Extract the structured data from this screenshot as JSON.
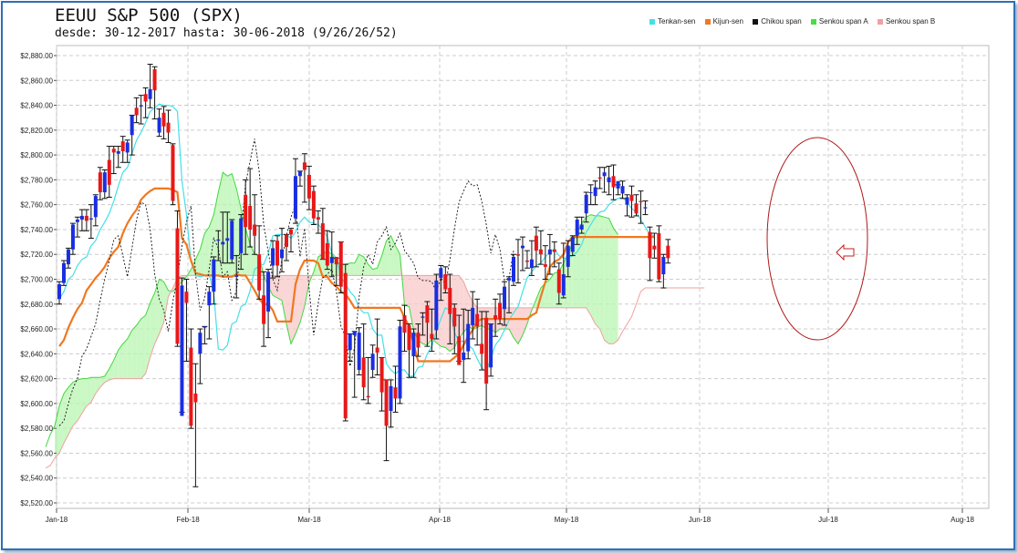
{
  "title": "EEUU S&P 500 (SPX)",
  "subtitle": "desde: 30-12-2017 hasta: 30-06-2018 (9/26/26/52)",
  "legend": [
    {
      "name": "Tenkan-sen",
      "color": "#44e0e8"
    },
    {
      "name": "Kijun-sen",
      "color": "#f07820"
    },
    {
      "name": "Chikou span",
      "color": "#111111"
    },
    {
      "name": "Senkou span A",
      "color": "#44e040"
    },
    {
      "name": "Senkou span B",
      "color": "#f0a0a0"
    }
  ],
  "chart_data": {
    "type": "candlestick",
    "title": "EEUU S&P 500 (SPX)",
    "grid": true,
    "legend_position": "top-right",
    "ylim": [
      2520,
      2880
    ],
    "yticks": [
      "$2,520.00",
      "$2,540.00",
      "$2,560.00",
      "$2,580.00",
      "$2,600.00",
      "$2,620.00",
      "$2,640.00",
      "$2,660.00",
      "$2,680.00",
      "$2,700.00",
      "$2,720.00",
      "$2,740.00",
      "$2,760.00",
      "$2,780.00",
      "$2,800.00",
      "$2,820.00",
      "$2,840.00",
      "$2,860.00",
      "$2,880.00"
    ],
    "xticks": [
      "Jan-18",
      "Feb-18",
      "Mar-18",
      "Apr-18",
      "May-18",
      "Jun-18",
      "Jul-18",
      "Aug-18"
    ],
    "candles": [
      [
        2684,
        2696,
        2680,
        2698
      ],
      [
        2697,
        2713,
        2695,
        2715
      ],
      [
        2712,
        2724,
        2709,
        2725
      ],
      [
        2724,
        2744,
        2720,
        2745
      ],
      [
        2746,
        2748,
        2734,
        2750
      ],
      [
        2748,
        2751,
        2739,
        2756
      ],
      [
        2751,
        2747,
        2739,
        2756
      ],
      [
        2748,
        2749,
        2733,
        2760
      ],
      [
        2750,
        2767,
        2743,
        2768
      ],
      [
        2786,
        2770,
        2764,
        2790
      ],
      [
        2770,
        2786,
        2765,
        2788
      ],
      [
        2796,
        2776,
        2766,
        2807
      ],
      [
        2805,
        2802,
        2785,
        2807
      ],
      [
        2801,
        2803,
        2790,
        2807
      ],
      [
        2811,
        2803,
        2794,
        2815
      ],
      [
        2802,
        2810,
        2794,
        2812
      ],
      [
        2816,
        2832,
        2800,
        2832
      ],
      [
        2838,
        2832,
        2826,
        2846
      ],
      [
        2839,
        2840,
        2825,
        2848
      ],
      [
        2849,
        2843,
        2830,
        2854
      ],
      [
        2845,
        2853,
        2838,
        2873
      ],
      [
        2869,
        2852,
        2829,
        2871
      ],
      [
        2818,
        2830,
        2815,
        2837
      ],
      [
        2834,
        2823,
        2813,
        2839
      ],
      [
        2826,
        2818,
        2810,
        2836
      ],
      [
        2808,
        2763,
        2760,
        2809
      ],
      [
        2741,
        2648,
        2646,
        2755
      ],
      [
        2590,
        2695,
        2593,
        2701
      ],
      [
        2690,
        2681,
        2634,
        2700
      ],
      [
        2645,
        2582,
        2580,
        2660
      ],
      [
        2608,
        2601,
        2533,
        2632
      ],
      [
        2640,
        2657,
        2616,
        2660
      ],
      [
        2661,
        2662,
        2648,
        2662
      ],
      [
        2679,
        2690,
        2652,
        2694
      ],
      [
        2690,
        2716,
        2680,
        2718
      ],
      [
        2731,
        2732,
        2715,
        2739
      ],
      [
        2728,
        2730,
        2713,
        2754
      ],
      [
        2731,
        2733,
        2713,
        2754
      ],
      [
        2716,
        2747,
        2713,
        2748
      ],
      [
        2702,
        2703,
        2685,
        2719
      ],
      [
        2721,
        2749,
        2708,
        2752
      ],
      [
        2768,
        2742,
        2720,
        2780
      ],
      [
        2759,
        2740,
        2726,
        2789
      ],
      [
        2744,
        2735,
        2720,
        2768
      ],
      [
        2720,
        2691,
        2684,
        2743
      ],
      [
        2687,
        2664,
        2646,
        2706
      ],
      [
        2674,
        2706,
        2653,
        2708
      ],
      [
        2711,
        2725,
        2701,
        2731
      ],
      [
        2731,
        2711,
        2702,
        2735
      ],
      [
        2717,
        2724,
        2706,
        2741
      ],
      [
        2736,
        2726,
        2715,
        2736
      ],
      [
        2740,
        2736,
        2722,
        2741
      ],
      [
        2749,
        2783,
        2745,
        2797
      ],
      [
        2783,
        2787,
        2775,
        2787
      ],
      [
        2794,
        2788,
        2762,
        2801
      ],
      [
        2784,
        2765,
        2756,
        2791
      ],
      [
        2771,
        2749,
        2744,
        2775
      ],
      [
        2750,
        2748,
        2737,
        2755
      ],
      [
        2745,
        2716,
        2716,
        2757
      ],
      [
        2729,
        2711,
        2708,
        2739
      ],
      [
        2713,
        2718,
        2702,
        2738
      ],
      [
        2718,
        2712,
        2695,
        2717
      ],
      [
        2730,
        2694,
        2689,
        2730
      ],
      [
        2705,
        2588,
        2586,
        2712
      ],
      [
        2643,
        2656,
        2634,
        2656
      ],
      [
        2655,
        2658,
        2605,
        2658
      ],
      [
        2627,
        2657,
        2623,
        2661
      ],
      [
        2637,
        2613,
        2603,
        2664
      ],
      [
        2606,
        2605,
        2600,
        2637
      ],
      [
        2627,
        2640,
        2621,
        2647
      ],
      [
        2645,
        2641,
        2623,
        2668
      ],
      [
        2637,
        2609,
        2594,
        2637
      ],
      [
        2619,
        2582,
        2554,
        2619
      ],
      [
        2594,
        2614,
        2581,
        2619
      ],
      [
        2613,
        2604,
        2593,
        2630
      ],
      [
        2604,
        2662,
        2600,
        2667
      ],
      [
        2671,
        2657,
        2642,
        2679
      ],
      [
        2663,
        2643,
        2621,
        2664
      ],
      [
        2638,
        2657,
        2621,
        2660
      ],
      [
        2657,
        2645,
        2638,
        2664
      ],
      [
        2669,
        2670,
        2655,
        2673
      ],
      [
        2679,
        2665,
        2646,
        2682
      ],
      [
        2656,
        2652,
        2642,
        2676
      ],
      [
        2659,
        2699,
        2652,
        2704
      ],
      [
        2701,
        2709,
        2683,
        2711
      ],
      [
        2704,
        2692,
        2689,
        2710
      ],
      [
        2693,
        2672,
        2648,
        2704
      ],
      [
        2677,
        2662,
        2640,
        2680
      ],
      [
        2654,
        2631,
        2634,
        2671
      ],
      [
        2635,
        2641,
        2617,
        2676
      ],
      [
        2642,
        2664,
        2636,
        2675
      ],
      [
        2663,
        2677,
        2652,
        2690
      ],
      [
        2672,
        2662,
        2647,
        2684
      ],
      [
        2648,
        2640,
        2627,
        2674
      ],
      [
        2669,
        2616,
        2595,
        2674
      ],
      [
        2629,
        2664,
        2622,
        2664
      ],
      [
        2671,
        2668,
        2654,
        2684
      ],
      [
        2681,
        2668,
        2664,
        2688
      ],
      [
        2676,
        2694,
        2663,
        2698
      ],
      [
        2699,
        2701,
        2673,
        2702
      ],
      [
        2698,
        2718,
        2695,
        2720
      ],
      [
        2720,
        2719,
        2697,
        2732
      ],
      [
        2725,
        2727,
        2707,
        2734
      ],
      [
        2715,
        2714,
        2709,
        2723
      ],
      [
        2709,
        2716,
        2703,
        2731
      ],
      [
        2735,
        2723,
        2710,
        2742
      ],
      [
        2724,
        2720,
        2712,
        2739
      ],
      [
        2712,
        2710,
        2700,
        2727
      ],
      [
        2720,
        2724,
        2704,
        2736
      ],
      [
        2724,
        2722,
        2710,
        2730
      ],
      [
        2708,
        2689,
        2680,
        2713
      ],
      [
        2687,
        2704,
        2685,
        2729
      ],
      [
        2710,
        2727,
        2702,
        2731
      ],
      [
        2722,
        2734,
        2719,
        2735
      ],
      [
        2735,
        2748,
        2728,
        2750
      ],
      [
        2740,
        2744,
        2737,
        2750
      ],
      [
        2753,
        2768,
        2746,
        2770
      ],
      [
        2770,
        2770,
        2760,
        2776
      ],
      [
        2767,
        2774,
        2760,
        2779
      ],
      [
        2782,
        2781,
        2773,
        2790
      ],
      [
        2783,
        2786,
        2770,
        2790
      ],
      [
        2778,
        2782,
        2768,
        2791
      ],
      [
        2783,
        2774,
        2764,
        2792
      ],
      [
        2773,
        2779,
        2768,
        2776
      ],
      [
        2769,
        2775,
        2765,
        2779
      ],
      [
        2760,
        2766,
        2751,
        2768
      ],
      [
        2768,
        2763,
        2750,
        2775
      ],
      [
        2761,
        2753,
        2751,
        2768
      ],
      [
        2763,
        2762,
        2745,
        2771
      ],
      [
        2757,
        2758,
        2752,
        2763
      ],
      [
        2738,
        2717,
        2699,
        2742
      ],
      [
        2727,
        2724,
        2717,
        2737
      ],
      [
        2737,
        2700,
        2698,
        2743
      ],
      [
        2704,
        2718,
        2693,
        2720
      ],
      [
        2727,
        2717,
        2713,
        2732
      ]
    ],
    "tenkan_sen": [
      2684,
      2690,
      2700,
      2703,
      2711,
      2716,
      2718,
      2727,
      2731,
      2740,
      2746,
      2753,
      2763,
      2775,
      2786,
      2790,
      2801,
      2812,
      2818,
      2826,
      2835,
      2838,
      2841,
      2840,
      2840,
      2839,
      2835,
      2779,
      2752,
      2714,
      2703,
      2702,
      2703,
      2704,
      2689,
      2644,
      2643,
      2647,
      2664,
      2666,
      2678,
      2680,
      2691,
      2708,
      2711,
      2712,
      2721,
      2735,
      2736,
      2736,
      2736,
      2733,
      2738,
      2746,
      2750,
      2746,
      2745,
      2744,
      2740,
      2734,
      2721,
      2717,
      2702,
      2696,
      2690,
      2686,
      2677,
      2673,
      2673,
      2660,
      2655,
      2655,
      2632,
      2627,
      2624,
      2627,
      2627,
      2622,
      2622,
      2629,
      2630,
      2640,
      2646,
      2658,
      2668,
      2677,
      2675,
      2657,
      2650,
      2650,
      2647,
      2644,
      2636,
      2629,
      2625,
      2637,
      2647,
      2652,
      2659,
      2667,
      2673,
      2678,
      2690,
      2701,
      2706,
      2711,
      2713,
      2718,
      2722,
      2724,
      2719,
      2717,
      2717,
      2719,
      2722,
      2728,
      2738,
      2744,
      2750,
      2754,
      2755,
      2760,
      2763,
      2765,
      2766,
      2762,
      2757,
      2754,
      2748,
      2742,
      2736,
      2735
    ],
    "kijun_sen": [
      2646,
      2651,
      2661,
      2669,
      2676,
      2681,
      2691,
      2696,
      2701,
      2705,
      2710,
      2717,
      2722,
      2726,
      2737,
      2745,
      2751,
      2756,
      2764,
      2768,
      2771,
      2773,
      2773,
      2773,
      2773,
      2772,
      2770,
      2733,
      2728,
      2715,
      2705,
      2704,
      2703,
      2703,
      2703,
      2703,
      2702,
      2702,
      2702,
      2704,
      2703,
      2703,
      2697,
      2691,
      2684,
      2680,
      2680,
      2675,
      2666,
      2666,
      2666,
      2666,
      2696,
      2708,
      2715,
      2715,
      2715,
      2713,
      2702,
      2702,
      2697,
      2694,
      2690,
      2688,
      2683,
      2677,
      2677,
      2677,
      2677,
      2677,
      2677,
      2677,
      2677,
      2677,
      2677,
      2677,
      2669,
      2662,
      2648,
      2634,
      2634,
      2634,
      2634,
      2634,
      2634,
      2634,
      2634,
      2637,
      2640,
      2647,
      2654,
      2659,
      2666,
      2668,
      2668,
      2668,
      2668,
      2668,
      2668,
      2668,
      2668,
      2668,
      2668,
      2668,
      2671,
      2673,
      2686,
      2698,
      2710,
      2714,
      2716,
      2720,
      2730,
      2734,
      2734,
      2734,
      2734,
      2734,
      2734,
      2734,
      2734,
      2734,
      2734,
      2734,
      2734,
      2734,
      2734,
      2734,
      2734,
      2734,
      2734,
      2734
    ],
    "chikou_span": [
      2582,
      2586,
      2600,
      2612,
      2620,
      2638,
      2644,
      2654,
      2664,
      2683,
      2700,
      2715,
      2732,
      2735,
      2719,
      2702,
      2725,
      2748,
      2762,
      2760,
      2740,
      2704,
      2684,
      2675,
      2658,
      2682,
      2701,
      2727,
      2746,
      2759,
      2704,
      2675,
      2685,
      2708,
      2733,
      2725,
      2702,
      2706,
      2683,
      2690,
      2735,
      2777,
      2795,
      2813,
      2787,
      2744,
      2722,
      2700,
      2691,
      2716,
      2735,
      2750,
      2760,
      2718,
      2741,
      2692,
      2655,
      2681,
      2701,
      2704,
      2708,
      2690,
      2662,
      2654,
      2630,
      2645,
      2686,
      2710,
      2720,
      2712,
      2730,
      2735,
      2742,
      2724,
      2729,
      2737,
      2723,
      2718,
      2713,
      2701,
      2699,
      2699,
      2698,
      2690,
      2701,
      2696,
      2716,
      2741,
      2762,
      2771,
      2779,
      2775,
      2776,
      2763,
      2744,
      2721,
      2736,
      2724,
      2699,
      2701,
      2723
    ],
    "senkou_span_a": [
      2565,
      2575,
      2582,
      2598,
      2608,
      2613,
      2617,
      2619,
      2620,
      2620,
      2621,
      2621,
      2621,
      2622,
      2628,
      2635,
      2643,
      2648,
      2652,
      2659,
      2663,
      2668,
      2671,
      2681,
      2689,
      2700,
      2698,
      2691,
      2690,
      2694,
      2698,
      2702,
      2708,
      2716,
      2724,
      2737,
      2742,
      2752,
      2770,
      2786,
      2783,
      2785,
      2773,
      2757,
      2741,
      2728,
      2720,
      2719,
      2703,
      2694,
      2687,
      2685,
      2683,
      2664,
      2648,
      2656,
      2665,
      2678,
      2697,
      2706,
      2718,
      2720,
      2723,
      2720,
      2714,
      2712,
      2712,
      2713,
      2713,
      2720,
      2718,
      2712,
      2708,
      2709,
      2719,
      2731,
      2735,
      2727,
      2720,
      2679,
      2678,
      2659,
      2651,
      2648,
      2647,
      2652,
      2649,
      2646,
      2645,
      2642,
      2645,
      2653,
      2657,
      2662,
      2660,
      2661,
      2663,
      2660,
      2660,
      2657,
      2660,
      2660,
      2660,
      2653,
      2648,
      2655,
      2664,
      2675,
      2684,
      2693,
      2697,
      2700,
      2705,
      2706,
      2713,
      2721,
      2729,
      2738,
      2745,
      2750,
      2752,
      2751,
      2751,
      2750,
      2749,
      2741,
      2736
    ],
    "senkou_span_b": [
      2548,
      2550,
      2556,
      2560,
      2568,
      2575,
      2582,
      2586,
      2592,
      2598,
      2601,
      2608,
      2613,
      2617,
      2619,
      2620,
      2620,
      2620,
      2620,
      2620,
      2620,
      2620,
      2624,
      2637,
      2648,
      2656,
      2665,
      2686,
      2693,
      2701,
      2703,
      2703,
      2703,
      2703,
      2703,
      2703,
      2703,
      2703,
      2703,
      2703,
      2703,
      2703,
      2703,
      2703,
      2703,
      2703,
      2703,
      2703,
      2703,
      2703,
      2703,
      2703,
      2703,
      2703,
      2703,
      2703,
      2703,
      2703,
      2703,
      2703,
      2703,
      2703,
      2703,
      2703,
      2703,
      2703,
      2703,
      2703,
      2703,
      2703,
      2703,
      2703,
      2703,
      2703,
      2703,
      2703,
      2703,
      2703,
      2703,
      2703,
      2703,
      2703,
      2703,
      2703,
      2703,
      2703,
      2703,
      2703,
      2703,
      2703,
      2703,
      2703,
      2698,
      2689,
      2682,
      2677,
      2677,
      2677,
      2677,
      2677,
      2677,
      2677,
      2677,
      2677,
      2677,
      2677,
      2677,
      2677,
      2677,
      2677,
      2677,
      2677,
      2677,
      2677,
      2677,
      2677,
      2677,
      2677,
      2677,
      2677,
      2671,
      2664,
      2660,
      2651,
      2648,
      2648,
      2651,
      2658,
      2664,
      2670,
      2680,
      2690,
      2693,
      2693,
      2693,
      2693,
      2693,
      2693,
      2693,
      2693,
      2693,
      2693,
      2693,
      2693,
      2693,
      2693
    ]
  }
}
